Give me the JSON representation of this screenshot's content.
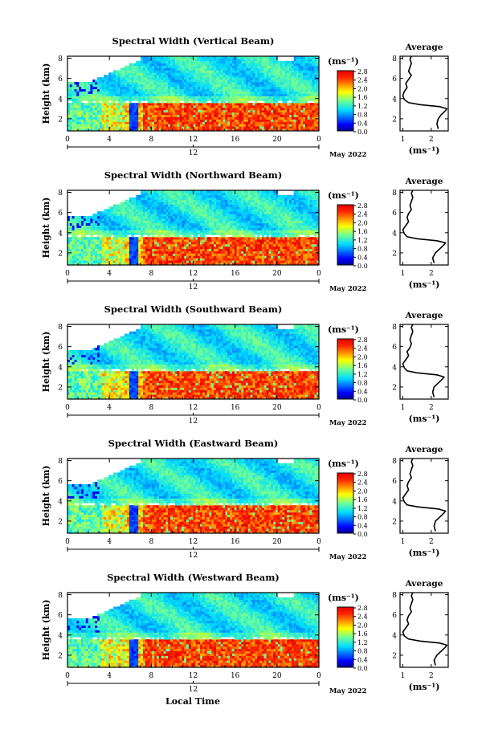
{
  "figure": {
    "xlabel": "Local Time",
    "date_label": "May 2022",
    "day_label": "12",
    "unit_label": "(ms⁻¹)",
    "ylabel": "Height (km)",
    "average_title": "Average",
    "average_xlabel": "(ms⁻¹)"
  },
  "chart_data": [
    {
      "type": "heatmap",
      "title": "Spectral Width (Vertical Beam)",
      "ylabel": "Height (km)",
      "x_ticks": [
        "0",
        "4",
        "8",
        "12",
        "16",
        "20",
        "0"
      ],
      "y_ticks": [
        "2",
        "4",
        "6",
        "8"
      ],
      "xlim": [
        0,
        24
      ],
      "ylim": [
        0.8,
        8.2
      ],
      "colorbar": {
        "label": "(ms⁻¹)",
        "ticks": [
          "0.0",
          "0.4",
          "0.8",
          "1.2",
          "1.6",
          "2.0",
          "2.4",
          "2.8"
        ],
        "range": [
          0,
          2.8
        ]
      },
      "average": {
        "title": "Average",
        "xlabel": "(ms⁻¹)",
        "x_ticks": [
          "1",
          "2"
        ],
        "y_ticks": [
          "2",
          "4",
          "6",
          "8"
        ],
        "xlim": [
          0.9,
          2.6
        ],
        "profile": [
          [
            2.25,
            1.0
          ],
          [
            2.2,
            1.5
          ],
          [
            2.25,
            2.0
          ],
          [
            2.35,
            2.4
          ],
          [
            2.5,
            2.8
          ],
          [
            2.55,
            3.0
          ],
          [
            2.3,
            3.2
          ],
          [
            1.6,
            3.4
          ],
          [
            1.2,
            3.6
          ],
          [
            1.05,
            3.9
          ],
          [
            1.0,
            4.3
          ],
          [
            1.05,
            4.7
          ],
          [
            1.15,
            5.1
          ],
          [
            1.1,
            5.5
          ],
          [
            1.2,
            5.9
          ],
          [
            1.3,
            6.3
          ],
          [
            1.2,
            6.7
          ],
          [
            1.25,
            7.1
          ],
          [
            1.3,
            7.5
          ],
          [
            1.25,
            7.9
          ],
          [
            1.3,
            8.2
          ]
        ]
      }
    },
    {
      "type": "heatmap",
      "title": "Spectral Width (Northward Beam)",
      "ylabel": "Height (km)",
      "x_ticks": [
        "0",
        "4",
        "8",
        "12",
        "16",
        "20",
        "0"
      ],
      "y_ticks": [
        "2",
        "4",
        "6",
        "8"
      ],
      "xlim": [
        0,
        24
      ],
      "ylim": [
        0.8,
        8.2
      ],
      "colorbar": {
        "label": "(ms⁻¹)",
        "ticks": [
          "0.0",
          "0.4",
          "0.8",
          "1.2",
          "1.6",
          "2.0",
          "2.4",
          "2.8"
        ],
        "range": [
          0,
          2.8
        ]
      },
      "average": {
        "title": "Average",
        "xlabel": "(ms⁻¹)",
        "x_ticks": [
          "1",
          "2"
        ],
        "y_ticks": [
          "2",
          "4",
          "6",
          "8"
        ],
        "xlim": [
          0.9,
          2.6
        ],
        "profile": [
          [
            2.1,
            1.0
          ],
          [
            2.05,
            1.5
          ],
          [
            2.15,
            2.0
          ],
          [
            2.3,
            2.4
          ],
          [
            2.45,
            2.8
          ],
          [
            2.5,
            3.0
          ],
          [
            2.2,
            3.2
          ],
          [
            1.5,
            3.4
          ],
          [
            1.15,
            3.6
          ],
          [
            1.05,
            3.9
          ],
          [
            1.0,
            4.3
          ],
          [
            1.1,
            4.7
          ],
          [
            1.2,
            5.1
          ],
          [
            1.15,
            5.5
          ],
          [
            1.2,
            5.9
          ],
          [
            1.3,
            6.3
          ],
          [
            1.25,
            6.7
          ],
          [
            1.3,
            7.1
          ],
          [
            1.35,
            7.5
          ],
          [
            1.3,
            7.9
          ],
          [
            1.35,
            8.2
          ]
        ]
      }
    },
    {
      "type": "heatmap",
      "title": "Spectral Width (Southward Beam)",
      "ylabel": "Height (km)",
      "x_ticks": [
        "0",
        "4",
        "8",
        "12",
        "16",
        "20",
        "0"
      ],
      "y_ticks": [
        "2",
        "4",
        "6",
        "8"
      ],
      "xlim": [
        0,
        24
      ],
      "ylim": [
        0.8,
        8.2
      ],
      "colorbar": {
        "label": "(ms⁻¹)",
        "ticks": [
          "0.0",
          "0.4",
          "0.8",
          "1.2",
          "1.6",
          "2.0",
          "2.4",
          "2.8"
        ],
        "range": [
          0,
          2.8
        ]
      },
      "average": {
        "title": "Average",
        "xlabel": "(ms⁻¹)",
        "x_ticks": [
          "1",
          "2"
        ],
        "y_ticks": [
          "2",
          "4",
          "6",
          "8"
        ],
        "xlim": [
          0.9,
          2.6
        ],
        "profile": [
          [
            2.1,
            1.0
          ],
          [
            2.05,
            1.5
          ],
          [
            2.1,
            2.0
          ],
          [
            2.25,
            2.4
          ],
          [
            2.4,
            2.8
          ],
          [
            2.45,
            3.0
          ],
          [
            2.2,
            3.2
          ],
          [
            1.5,
            3.4
          ],
          [
            1.15,
            3.6
          ],
          [
            1.05,
            3.9
          ],
          [
            1.0,
            4.3
          ],
          [
            1.1,
            4.7
          ],
          [
            1.2,
            5.1
          ],
          [
            1.15,
            5.5
          ],
          [
            1.25,
            5.9
          ],
          [
            1.3,
            6.3
          ],
          [
            1.25,
            6.7
          ],
          [
            1.3,
            7.1
          ],
          [
            1.35,
            7.5
          ],
          [
            1.3,
            7.9
          ],
          [
            1.35,
            8.2
          ]
        ]
      }
    },
    {
      "type": "heatmap",
      "title": "Spectral Width (Eastward Beam)",
      "ylabel": "Height (km)",
      "x_ticks": [
        "0",
        "4",
        "8",
        "12",
        "16",
        "20",
        "0"
      ],
      "y_ticks": [
        "2",
        "4",
        "6",
        "8"
      ],
      "xlim": [
        0,
        24
      ],
      "ylim": [
        0.8,
        8.2
      ],
      "colorbar": {
        "label": "(ms⁻¹)",
        "ticks": [
          "0.0",
          "0.4",
          "0.8",
          "1.2",
          "1.6",
          "2.0",
          "2.4",
          "2.8"
        ],
        "range": [
          0,
          2.8
        ]
      },
      "average": {
        "title": "Average",
        "xlabel": "(ms⁻¹)",
        "x_ticks": [
          "1",
          "2"
        ],
        "y_ticks": [
          "2",
          "4",
          "6",
          "8"
        ],
        "xlim": [
          0.9,
          2.6
        ],
        "profile": [
          [
            2.15,
            1.0
          ],
          [
            2.1,
            1.5
          ],
          [
            2.15,
            2.0
          ],
          [
            2.3,
            2.4
          ],
          [
            2.45,
            2.8
          ],
          [
            2.5,
            3.0
          ],
          [
            2.25,
            3.2
          ],
          [
            1.55,
            3.4
          ],
          [
            1.15,
            3.6
          ],
          [
            1.05,
            3.9
          ],
          [
            1.0,
            4.3
          ],
          [
            1.1,
            4.7
          ],
          [
            1.2,
            5.1
          ],
          [
            1.15,
            5.5
          ],
          [
            1.2,
            5.9
          ],
          [
            1.3,
            6.3
          ],
          [
            1.25,
            6.7
          ],
          [
            1.3,
            7.1
          ],
          [
            1.35,
            7.5
          ],
          [
            1.3,
            7.9
          ],
          [
            1.35,
            8.2
          ]
        ]
      }
    },
    {
      "type": "heatmap",
      "title": "Spectral Width (Westward Beam)",
      "ylabel": "Height (km)",
      "x_ticks": [
        "0",
        "4",
        "8",
        "12",
        "16",
        "20",
        "0"
      ],
      "y_ticks": [
        "2",
        "4",
        "6",
        "8"
      ],
      "xlim": [
        0,
        24
      ],
      "ylim": [
        0.8,
        8.2
      ],
      "colorbar": {
        "label": "(ms⁻¹)",
        "ticks": [
          "0.0",
          "0.4",
          "0.8",
          "1.2",
          "1.6",
          "2.0",
          "2.4",
          "2.8"
        ],
        "range": [
          0,
          2.8
        ]
      },
      "average": {
        "title": "Average",
        "xlabel": "(ms⁻¹)",
        "x_ticks": [
          "1",
          "2"
        ],
        "y_ticks": [
          "2",
          "4",
          "6",
          "8"
        ],
        "xlim": [
          0.9,
          2.6
        ],
        "profile": [
          [
            2.15,
            1.0
          ],
          [
            2.1,
            1.5
          ],
          [
            2.2,
            2.0
          ],
          [
            2.35,
            2.4
          ],
          [
            2.5,
            2.8
          ],
          [
            2.55,
            3.0
          ],
          [
            2.3,
            3.2
          ],
          [
            1.6,
            3.4
          ],
          [
            1.2,
            3.6
          ],
          [
            1.05,
            3.9
          ],
          [
            1.0,
            4.3
          ],
          [
            1.1,
            4.7
          ],
          [
            1.2,
            5.1
          ],
          [
            1.15,
            5.5
          ],
          [
            1.2,
            5.9
          ],
          [
            1.3,
            6.3
          ],
          [
            1.25,
            6.7
          ],
          [
            1.3,
            7.1
          ],
          [
            1.35,
            7.5
          ],
          [
            1.3,
            7.9
          ],
          [
            1.35,
            8.2
          ]
        ]
      }
    }
  ]
}
